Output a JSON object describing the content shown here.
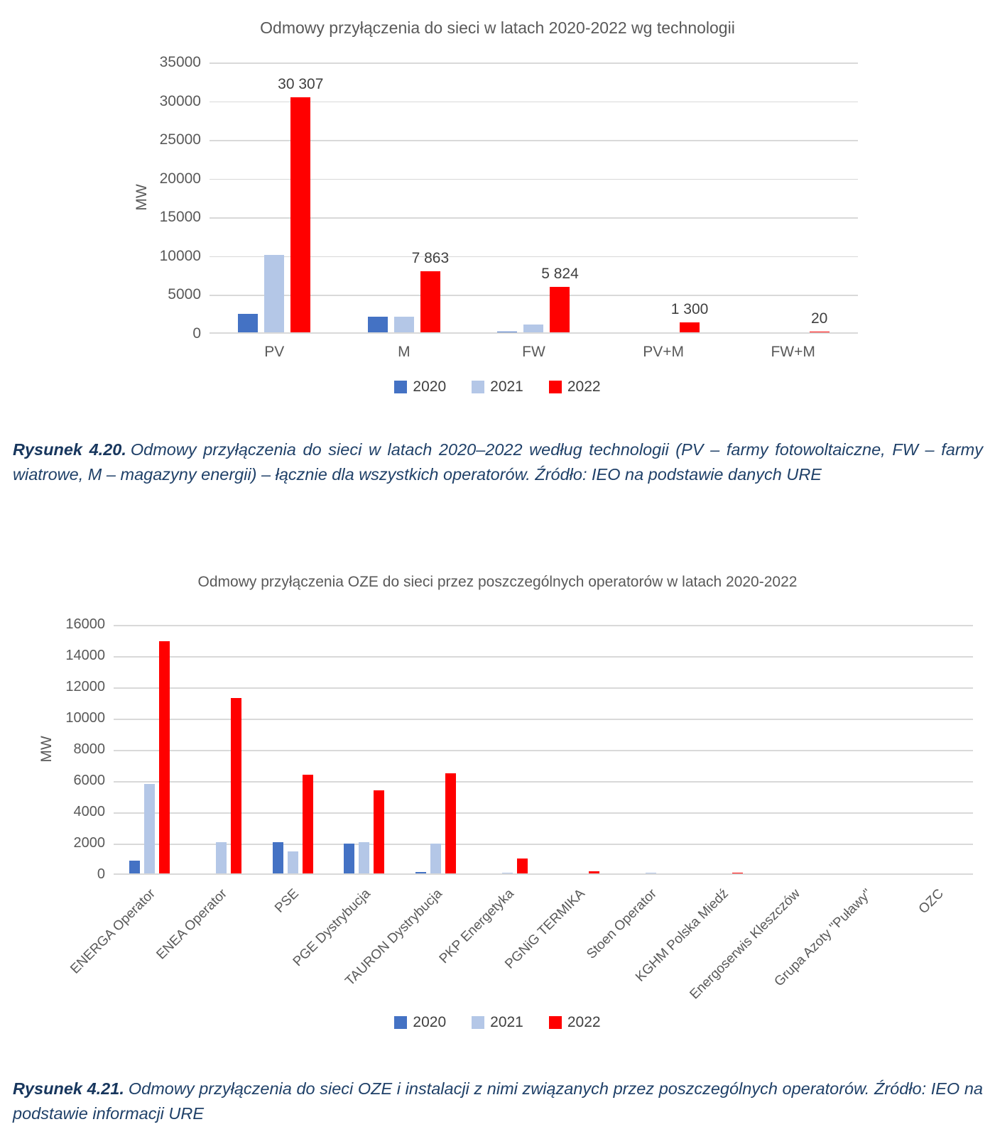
{
  "chart_data": [
    {
      "type": "bar",
      "title": "Odmowy przyłączenia do sieci w latach 2020-2022 wg technologii",
      "ylabel": "MW",
      "ylim": [
        0,
        35000
      ],
      "ytick_step": 5000,
      "grid": true,
      "legend_position": "bottom",
      "categories": [
        "PV",
        "M",
        "FW",
        "PV+M",
        "FW+M"
      ],
      "series": [
        {
          "name": "2020",
          "color": "#4472C4",
          "values": [
            2400,
            2000,
            60,
            0,
            0
          ]
        },
        {
          "name": "2021",
          "color": "#B4C7E7",
          "values": [
            10000,
            2000,
            1000,
            0,
            0
          ]
        },
        {
          "name": "2022",
          "color": "#FF0000",
          "values": [
            30307,
            7863,
            5824,
            1300,
            20
          ],
          "data_labels": [
            "30 307",
            "7 863",
            "5 824",
            "1 300",
            "20"
          ]
        }
      ]
    },
    {
      "type": "bar",
      "title": "Odmowy przyłączenia OZE do sieci przez poszczególnych operatorów w latach 2020-2022",
      "ylabel": "MW",
      "ylim": [
        0,
        16000
      ],
      "ytick_step": 2000,
      "grid": true,
      "legend_position": "bottom",
      "categories": [
        "ENERGA Operator",
        "ENEA Operator",
        "PSE",
        "PGE Dystrybucja",
        "TAURON Dystrybucja",
        "PKP Energetyka",
        "PGNiG TERMIKA",
        "Stoen Operator",
        "KGHM Polska Miedź",
        "Energoserwis Kleszczów",
        "Grupa Azoty \"Puławy\"",
        "OZC"
      ],
      "series": [
        {
          "name": "2020",
          "color": "#4472C4",
          "values": [
            800,
            0,
            2000,
            1900,
            100,
            0,
            0,
            0,
            0,
            0,
            0,
            0
          ]
        },
        {
          "name": "2021",
          "color": "#B4C7E7",
          "values": [
            5750,
            2000,
            1400,
            2000,
            1900,
            30,
            0,
            30,
            0,
            0,
            0,
            0
          ]
        },
        {
          "name": "2022",
          "color": "#FF0000",
          "values": [
            14850,
            11250,
            6300,
            5300,
            6400,
            950,
            120,
            0,
            50,
            0,
            0,
            0
          ]
        }
      ]
    }
  ],
  "captions": [
    {
      "label": "Rysunek 4.20.",
      "text": "Odmowy przyłączenia do sieci w latach 2020–2022 według technologii (PV – farmy fotowoltaiczne, FW – farmy wiatrowe, M – magazyny energii) – łącznie dla wszystkich operatorów. Źródło: IEO na podstawie danych URE"
    },
    {
      "label": "Rysunek 4.21.",
      "text": "Odmowy przyłączenia do sieci OZE i instalacji z nimi związanych przez poszczególnych operatorów. Źródło: IEO na podstawie informacji URE"
    }
  ],
  "colors": {
    "series_2020": "#4472C4",
    "series_2021": "#B4C7E7",
    "series_2022": "#FF0000",
    "chart_text": "#595959",
    "gridline": "#D9D9D9",
    "caption_text": "#1F4068"
  }
}
